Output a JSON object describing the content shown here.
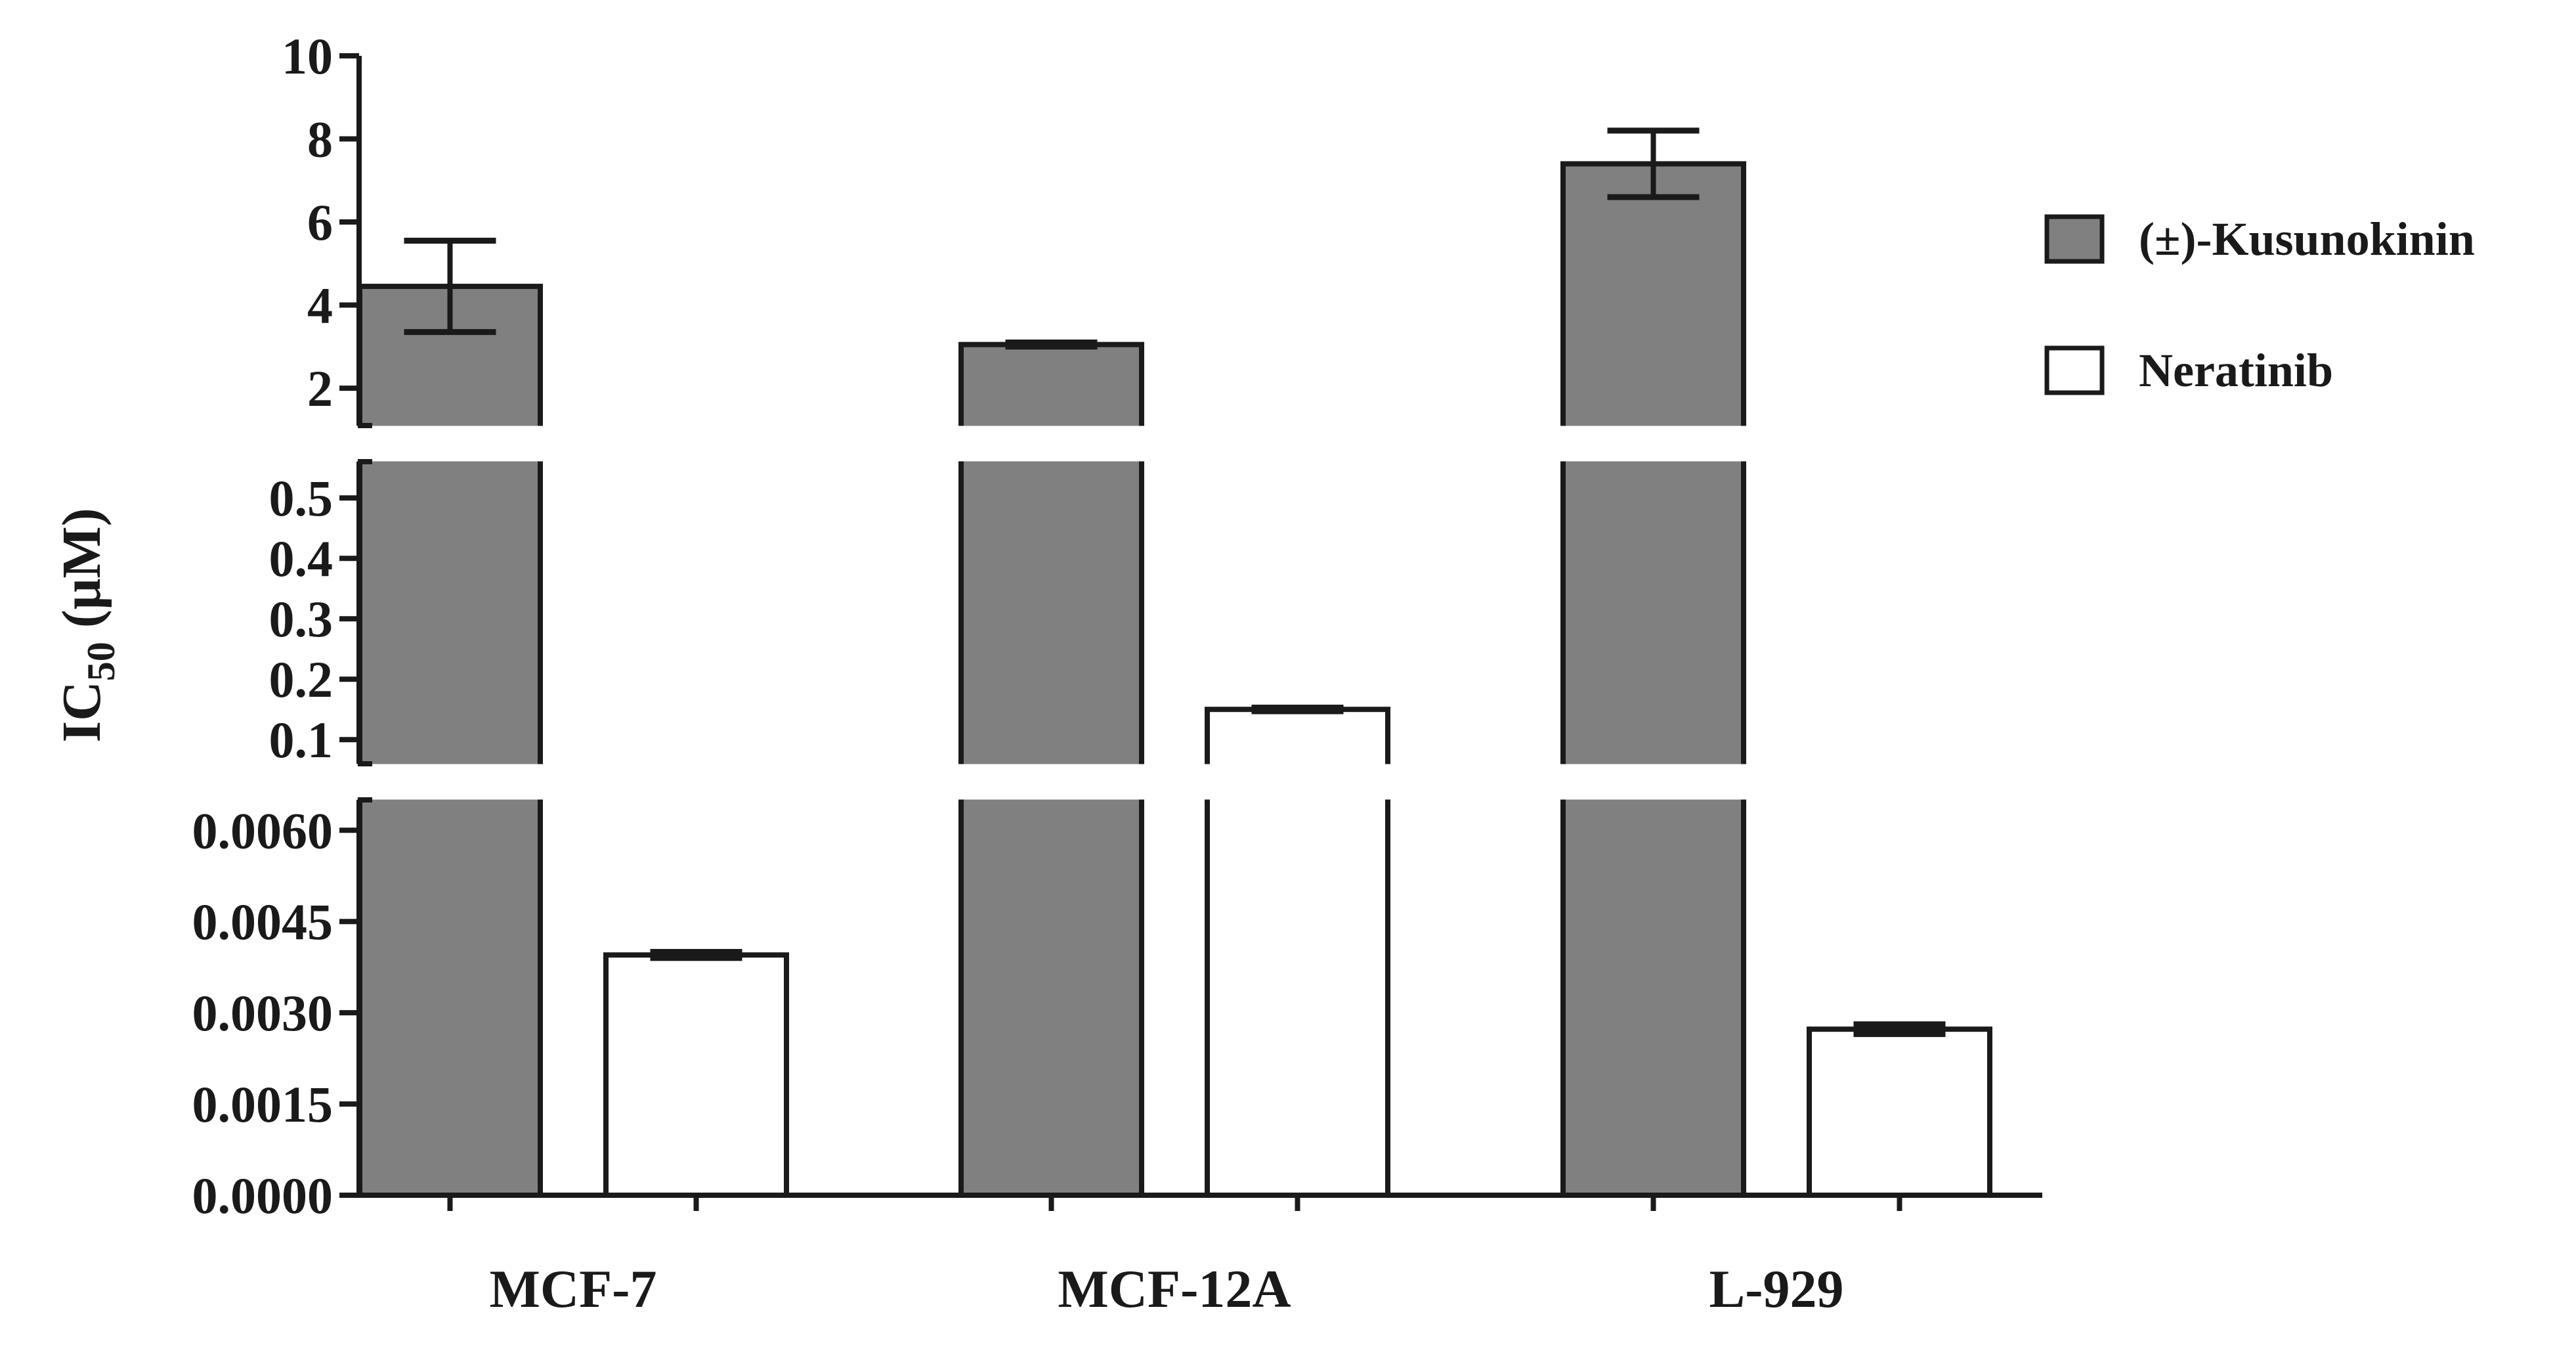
{
  "chart_data": {
    "type": "bar",
    "title": "",
    "xlabel": "",
    "ylabel": {
      "main": "IC",
      "subscript": "50",
      "unit": " (μM)"
    },
    "categories": [
      "MCF-7",
      "MCF-12A",
      "L-929"
    ],
    "series": [
      {
        "name": "(±)-Kusunokinin",
        "fill": "#808080",
        "values": [
          4.45,
          3.05,
          7.4
        ],
        "errors": [
          1.1,
          0.05,
          0.8
        ]
      },
      {
        "name": "Neratinib",
        "fill": "#ffffff",
        "values": [
          0.00395,
          0.15,
          0.00273
        ],
        "errors": [
          5e-05,
          0.003,
          8e-05
        ]
      }
    ],
    "y_axis_type": "broken (three segments)",
    "y_segments": [
      {
        "ylim": [
          0,
          0.0065
        ],
        "ticks": [
          0,
          0.0015,
          0.003,
          0.0045,
          0.006
        ],
        "tick_labels": [
          "0.0000",
          "0.0015",
          "0.0030",
          "0.0045",
          "0.0060"
        ]
      },
      {
        "ylim": [
          0.06,
          0.56
        ],
        "ticks": [
          0.1,
          0.2,
          0.3,
          0.4,
          0.5
        ],
        "tick_labels": [
          "0.1",
          "0.2",
          "0.3",
          "0.4",
          "0.5"
        ]
      },
      {
        "ylim": [
          1.1,
          10
        ],
        "ticks": [
          2,
          4,
          6,
          8,
          10
        ],
        "tick_labels": [
          "2",
          "4",
          "6",
          "8",
          "10"
        ]
      }
    ],
    "legend_position": "right",
    "grid": false
  }
}
